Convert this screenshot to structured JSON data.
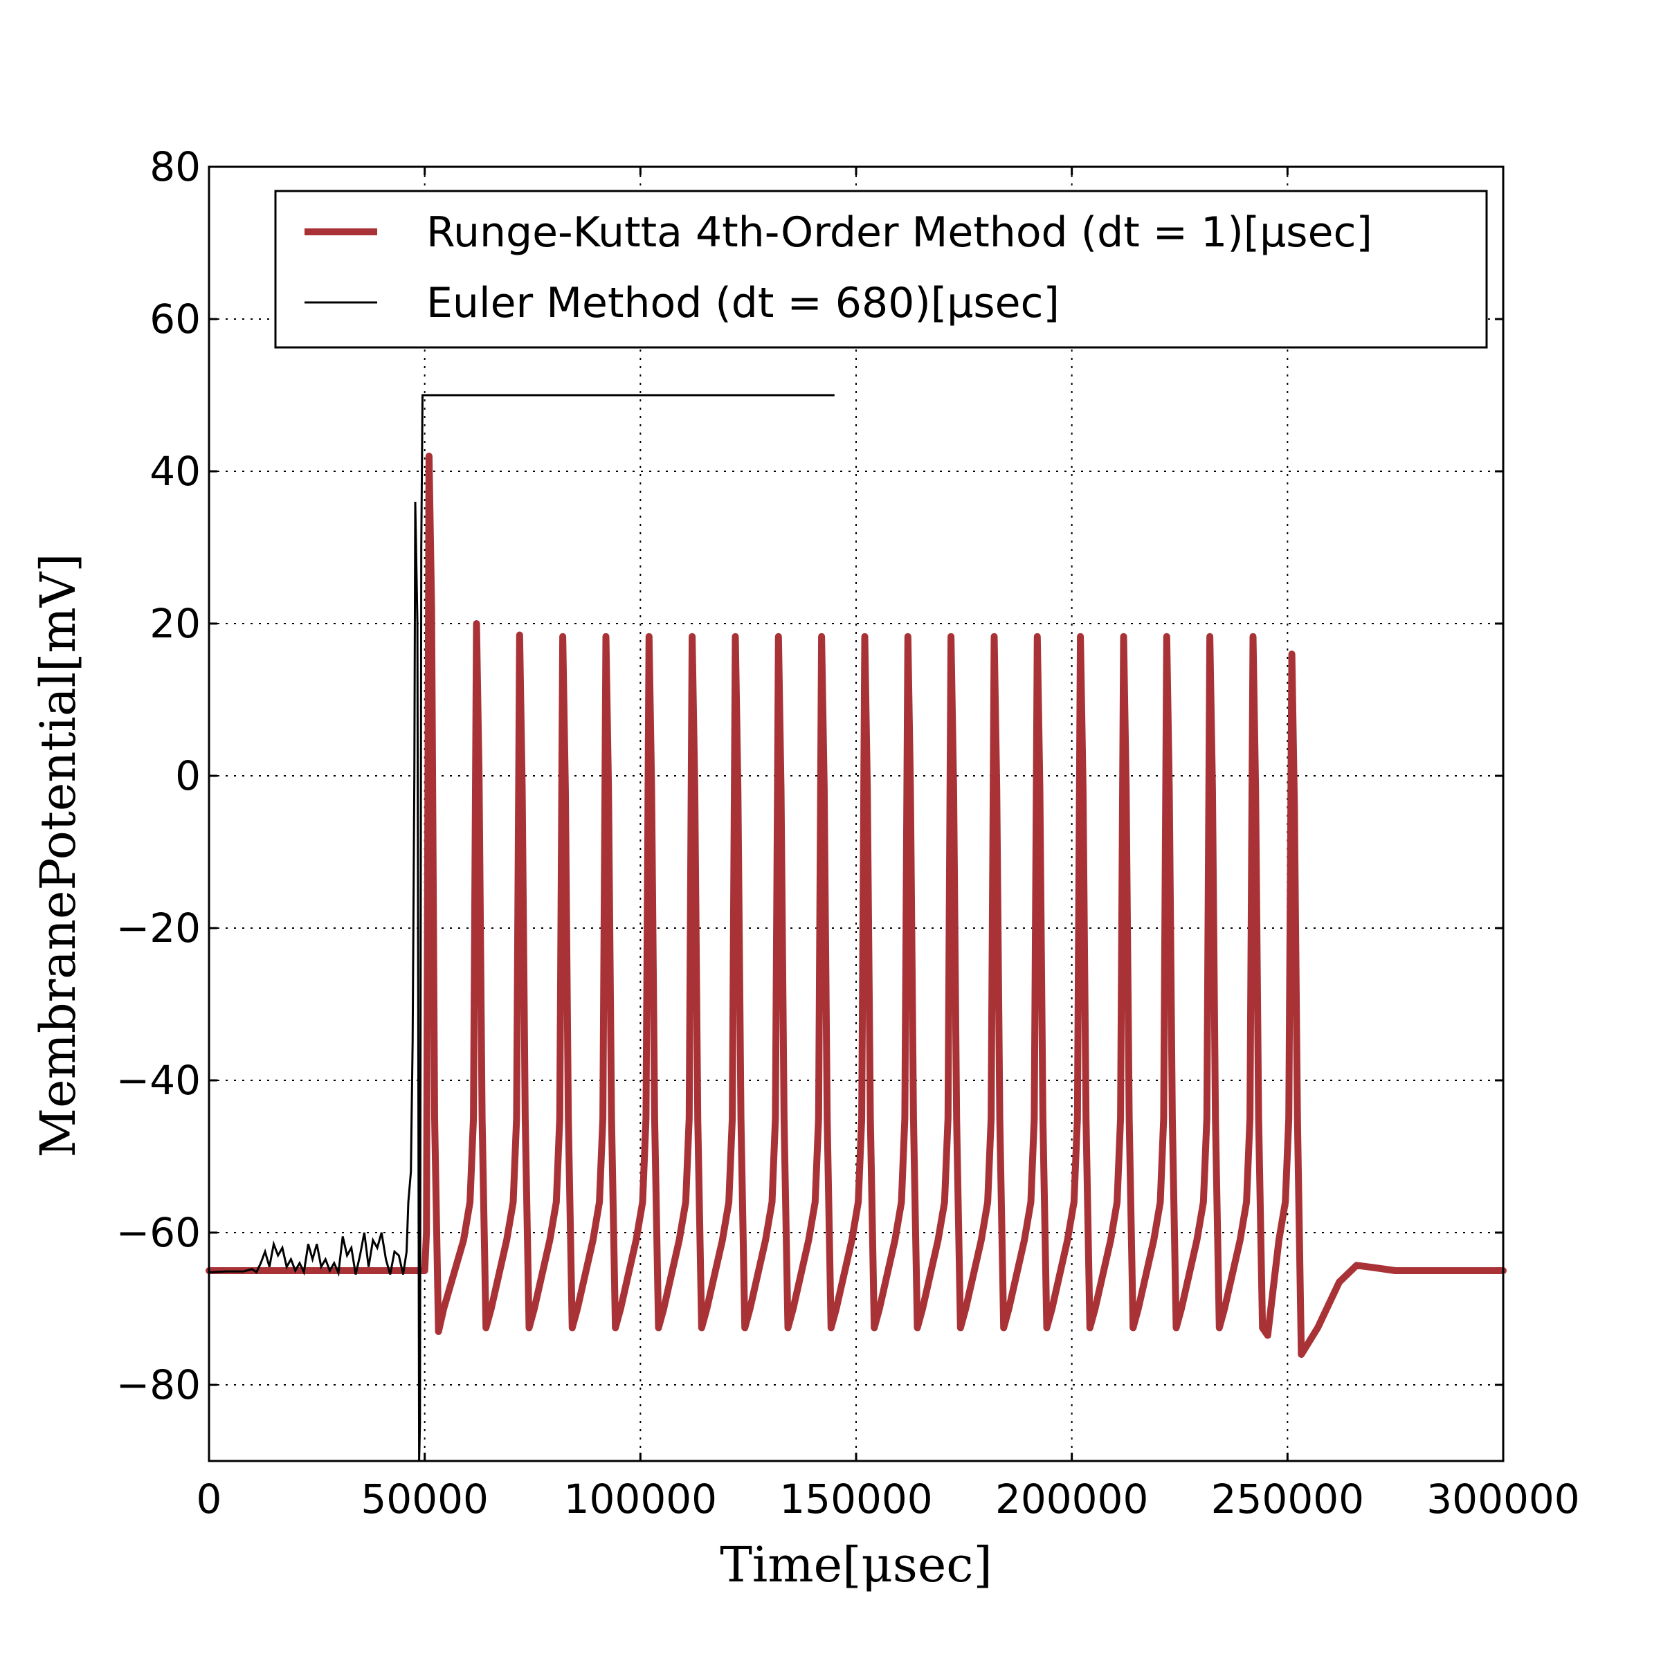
{
  "chart_data": {
    "type": "line",
    "title": "",
    "xlabel": "Time[μsec]",
    "ylabel": "MembranePotential[mV]",
    "xlim": [
      0,
      300000
    ],
    "ylim": [
      -90,
      80
    ],
    "x_ticks": [
      "0",
      "50000",
      "100000",
      "150000",
      "200000",
      "250000",
      "300000"
    ],
    "y_ticks": [
      "80",
      "60",
      "40",
      "20",
      "0",
      "−20",
      "−40",
      "−60",
      "−80"
    ],
    "grid": true,
    "legend_placement": "top-center",
    "colors": {
      "rk4": "#a83236",
      "euler": "#000000"
    },
    "series": [
      {
        "name": "Runge-Kutta 4th-Order Method (dt = 1)[μsec]",
        "style": "thick",
        "spike_peaks": [
          [
            51000,
            42
          ],
          [
            62000,
            20
          ],
          [
            72000,
            18.5
          ],
          [
            82000,
            18.3
          ],
          [
            92000,
            18.3
          ],
          [
            102000,
            18.3
          ],
          [
            112000,
            18.3
          ],
          [
            122000,
            18.3
          ],
          [
            132000,
            18.3
          ],
          [
            142000,
            18.3
          ],
          [
            152000,
            18.3
          ],
          [
            162000,
            18.3
          ],
          [
            172000,
            18.3
          ],
          [
            182000,
            18.3
          ],
          [
            192000,
            18.3
          ],
          [
            202000,
            18.3
          ],
          [
            212000,
            18.3
          ],
          [
            222000,
            18.3
          ],
          [
            232000,
            18.3
          ],
          [
            242000,
            18.3
          ],
          [
            251000,
            16
          ]
        ],
        "troughs": [
          -73,
          -72.5,
          -72.5,
          -72.5,
          -72.5,
          -72.5,
          -72.5,
          -72.5,
          -72.5,
          -72.5,
          -72.5,
          -72.5,
          -72.5,
          -72.5,
          -72.5,
          -72.5,
          -72.5,
          -72.5,
          -72.5,
          -72.5,
          -76
        ],
        "points": [
          [
            0,
            -65
          ],
          [
            50000,
            -65
          ],
          [
            50500,
            -60
          ],
          [
            51000,
            42
          ],
          [
            52000,
            10
          ],
          [
            53000,
            -50
          ],
          [
            54000,
            -73
          ],
          [
            55500,
            -70
          ],
          [
            59000,
            -60
          ],
          [
            60500,
            -55
          ],
          [
            61300,
            -45
          ],
          [
            62000,
            20
          ],
          [
            63000,
            -20
          ],
          [
            64200,
            -72.5
          ],
          [
            253000,
            -76
          ],
          [
            257000,
            -72
          ],
          [
            262000,
            -66
          ],
          [
            266000,
            -64.3
          ],
          [
            270000,
            -64.5
          ],
          [
            275000,
            -65
          ],
          [
            300000,
            -65
          ]
        ]
      },
      {
        "name": "Euler Method (dt = 680)[μsec]",
        "style": "thin",
        "points": [
          [
            0,
            -65.2
          ],
          [
            4000,
            -65.1
          ],
          [
            8000,
            -65.1
          ],
          [
            10000,
            -64.8
          ],
          [
            11000,
            -65.2
          ],
          [
            12000,
            -64.0
          ],
          [
            13000,
            -62.5
          ],
          [
            14000,
            -64.5
          ],
          [
            15000,
            -61.5
          ],
          [
            16000,
            -63.0
          ],
          [
            17000,
            -62.0
          ],
          [
            18000,
            -64.5
          ],
          [
            19000,
            -63.5
          ],
          [
            20000,
            -65.0
          ],
          [
            21000,
            -64.0
          ],
          [
            22000,
            -65.2
          ],
          [
            23000,
            -61.5
          ],
          [
            24000,
            -63.5
          ],
          [
            25000,
            -61.5
          ],
          [
            26000,
            -64.5
          ],
          [
            27000,
            -63.5
          ],
          [
            28000,
            -65.0
          ],
          [
            29000,
            -64.0
          ],
          [
            30000,
            -65.3
          ],
          [
            31000,
            -60.5
          ],
          [
            32000,
            -63.0
          ],
          [
            33000,
            -62.0
          ],
          [
            34000,
            -65.5
          ],
          [
            35000,
            -63.0
          ],
          [
            36000,
            -60.0
          ],
          [
            37000,
            -64.5
          ],
          [
            38000,
            -61.0
          ],
          [
            39000,
            -62.0
          ],
          [
            40000,
            -60.0
          ],
          [
            41000,
            -63.5
          ],
          [
            42000,
            -65.5
          ],
          [
            43000,
            -62.5
          ],
          [
            44000,
            -63.0
          ],
          [
            45000,
            -65.5
          ],
          [
            45800,
            -62.5
          ],
          [
            46200,
            -56.0
          ],
          [
            46800,
            -52.0
          ],
          [
            47200,
            -35.0
          ],
          [
            47600,
            0.0
          ],
          [
            47800,
            36.0
          ],
          [
            48300,
            20.0
          ],
          [
            48500,
            -30.0
          ],
          [
            48700,
            -90.0
          ],
          [
            48900,
            -85.0
          ],
          [
            49200,
            30.0
          ],
          [
            49500,
            50.0
          ],
          [
            97000,
            50.0
          ],
          [
            145000,
            50.0
          ]
        ]
      }
    ]
  }
}
